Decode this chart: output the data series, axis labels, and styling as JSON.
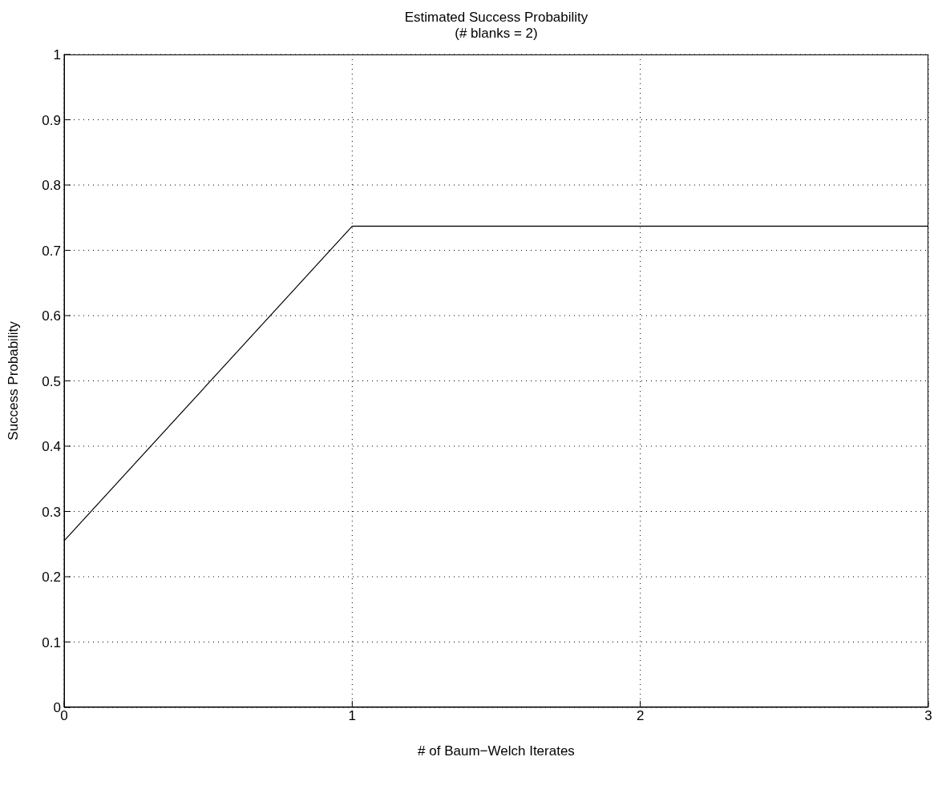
{
  "chart_data": {
    "type": "line",
    "title": "Estimated Success Probability",
    "subtitle": "(# blanks = 2)",
    "xlabel": "# of Baum−Welch Iterates",
    "ylabel": "Success Probability",
    "x": [
      0,
      1,
      2,
      3
    ],
    "series": [
      {
        "color": "#000000",
        "values": [
          0.255,
          0.737,
          0.737,
          0.737
        ]
      }
    ],
    "xlim": [
      0,
      3
    ],
    "xticks": [
      0,
      1,
      2,
      3
    ],
    "ylim": [
      0,
      1
    ],
    "yticks": [
      0,
      0.1,
      0.2,
      0.3,
      0.4,
      0.5,
      0.6,
      0.7,
      0.8,
      0.9,
      1
    ],
    "grid": true,
    "line_style": "solid",
    "marker": "none"
  }
}
